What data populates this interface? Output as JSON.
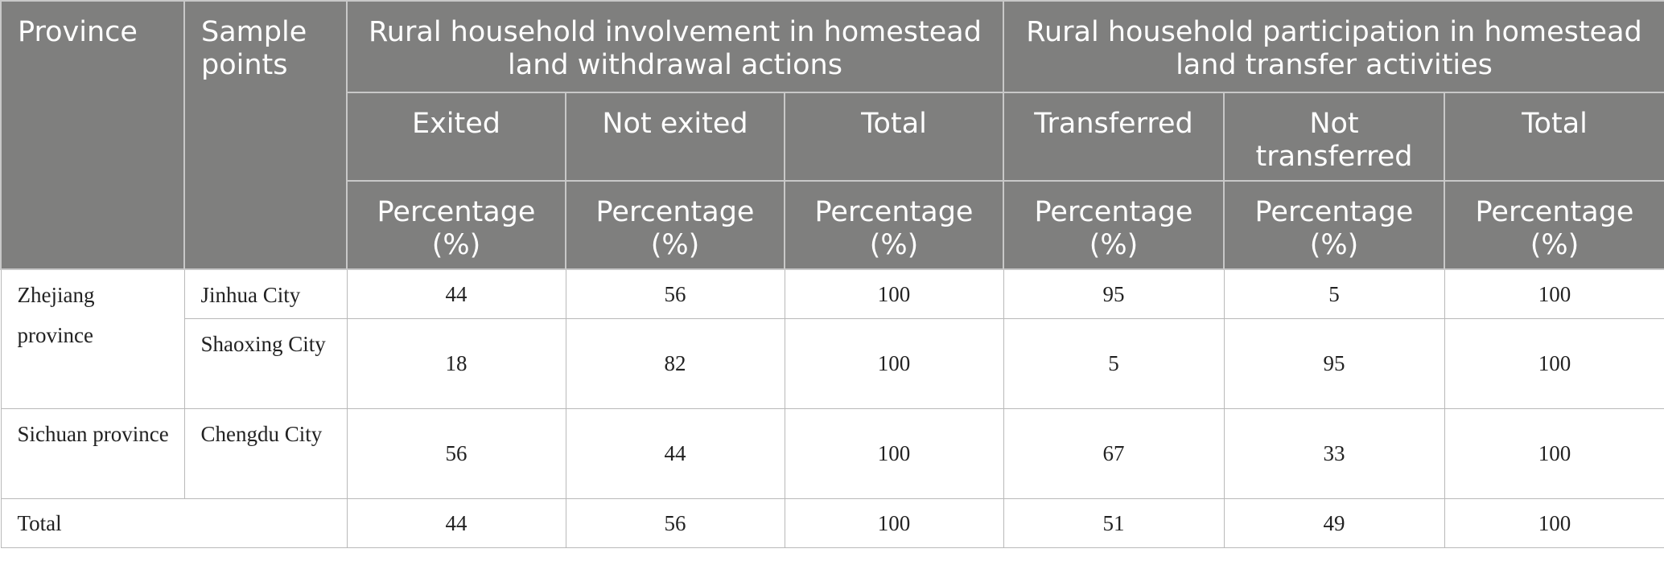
{
  "header": {
    "province": "Province",
    "sample_points": "Sample points",
    "group_withdrawal": "Rural household involvement in homestead land withdrawal actions",
    "group_transfer": "Rural household participation in homestead land transfer activities",
    "exited": "Exited",
    "not_exited": "Not exited",
    "total_withdrawal": "Total",
    "transferred": "Transferred",
    "not_transferred": "Not transferred",
    "total_transfer": "Total",
    "percentage": "Percentage (%)"
  },
  "rows": [
    {
      "province": "Zhejiang province",
      "sample_point": "Jinhua City",
      "exited": "44",
      "not_exited": "56",
      "total_withdrawal": "100",
      "transferred": "95",
      "not_transferred": "5",
      "total_transfer": "100"
    },
    {
      "sample_point": "Shaoxing City",
      "exited": "18",
      "not_exited": "82",
      "total_withdrawal": "100",
      "transferred": "5",
      "not_transferred": "95",
      "total_transfer": "100"
    },
    {
      "province": "Sichuan province",
      "sample_point": "Chengdu City",
      "exited": "56",
      "not_exited": "44",
      "total_withdrawal": "100",
      "transferred": "67",
      "not_transferred": "33",
      "total_transfer": "100"
    }
  ],
  "total_row": {
    "label": "Total",
    "exited": "44",
    "not_exited": "56",
    "total_withdrawal": "100",
    "transferred": "51",
    "not_transferred": "49",
    "total_transfer": "100"
  }
}
